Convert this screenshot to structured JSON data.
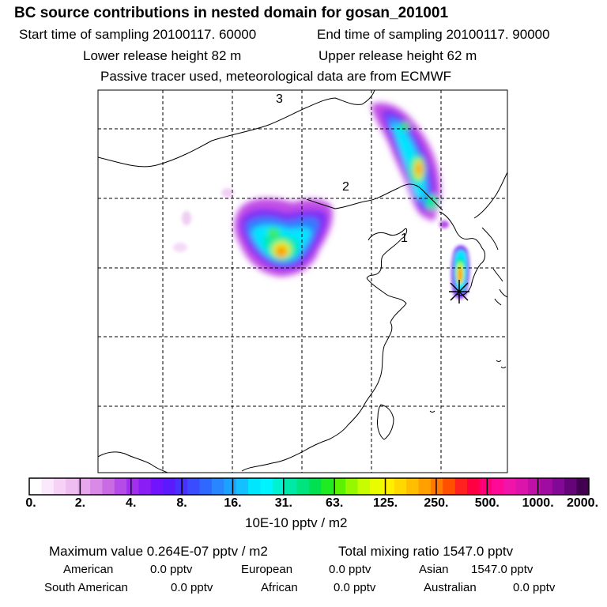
{
  "header": {
    "title": "BC  source contributions in nested domain for gosan_201001",
    "start_label": "Start time of sampling 20100117. 60000",
    "end_label": "End time of sampling 20100117. 90000",
    "lower_label": "Lower release height   82 m",
    "upper_label": "Upper release height   62 m",
    "tracer_label": "Passive tracer used, meteorological data are from ECMWF"
  },
  "chart_data": {
    "type": "heatmap",
    "title": "BC  source contributions in nested domain for gosan_201001",
    "colorbar_unit": "10E-10 pptv / m2",
    "colorbar_ticks": [
      "0.",
      "2.",
      "4.",
      "8.",
      "16.",
      "31.",
      "63.",
      "125.",
      "250.",
      "500.",
      "1000.",
      "2000."
    ],
    "colorbar_colors": [
      "#ffffff",
      "#fbe9fb",
      "#f5d2f6",
      "#efbdf1",
      "#e6a7ec",
      "#d98ae7",
      "#c96ce4",
      "#b64ce8",
      "#a030ee",
      "#8a1cf5",
      "#7214fb",
      "#5a1afc",
      "#4830ff",
      "#3a4cff",
      "#2f68ff",
      "#2a86ff",
      "#1ea2ff",
      "#14c0ff",
      "#00e6ff",
      "#00f4ff",
      "#00f0d2",
      "#00e8a8",
      "#00e47e",
      "#00e050",
      "#20ea20",
      "#5af200",
      "#96f800",
      "#c8fc00",
      "#eafc00",
      "#fff000",
      "#ffd800",
      "#ffbe00",
      "#ffa000",
      "#ff7a00",
      "#ff5000",
      "#ff2020",
      "#ff0040",
      "#ff0078",
      "#ff0a96",
      "#f014a8",
      "#dc14ac",
      "#c010a8",
      "#a00ca0",
      "#820896",
      "#640478",
      "#440050"
    ],
    "grid_labels": [
      "3",
      "2",
      "1"
    ],
    "receptor": "Gosan",
    "max_value": "0.264E-07",
    "total_mixing_ratio": "1547.0",
    "units": "pptv"
  },
  "footer": {
    "max_label": "Maximum value  0.264E-07 pptv / m2",
    "total_label": "Total mixing ratio     1547.0 pptv",
    "american": "American",
    "american_val": "0.0 pptv",
    "european": "European",
    "european_val": "0.0 pptv",
    "asian": "Asian",
    "asian_val": "1547.0 pptv",
    "south_american": "South American",
    "south_american_val": "0.0 pptv",
    "african": "African",
    "african_val": "0.0 pptv",
    "australian": "Australian",
    "australian_val": "0.0 pptv"
  },
  "colors": {
    "outline": "#000000",
    "background": "#ffffff"
  }
}
